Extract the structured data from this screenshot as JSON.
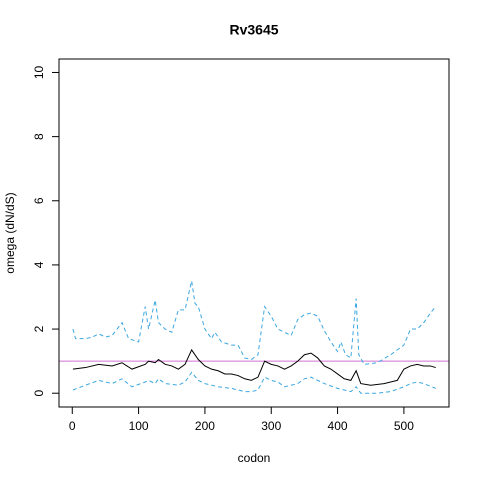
{
  "chart_data": {
    "type": "line",
    "title": "Rv3645",
    "x_label": "codon",
    "y_label": "omega (dN/dS)",
    "xlim": [
      -20,
      568
    ],
    "ylim": [
      -0.43,
      10.42
    ],
    "xticks": [
      0,
      100,
      200,
      300,
      400,
      500
    ],
    "yticks": [
      0,
      2,
      4,
      6,
      8,
      10
    ],
    "hline": {
      "value": 1,
      "color": "#d070d0"
    },
    "series": [
      {
        "color": "#000000",
        "dash": false,
        "x": [
          1,
          20,
          40,
          60,
          75,
          90,
          110,
          115,
          125,
          130,
          140,
          150,
          160,
          170,
          180,
          190,
          200,
          210,
          220,
          230,
          240,
          250,
          260,
          270,
          280,
          290,
          300,
          310,
          320,
          330,
          340,
          350,
          360,
          370,
          380,
          390,
          400,
          410,
          420,
          428,
          435,
          450,
          470,
          490,
          500,
          510,
          520,
          530,
          540,
          548
        ],
        "values": [
          0.75,
          0.8,
          0.9,
          0.85,
          0.95,
          0.75,
          0.9,
          1.0,
          0.95,
          1.05,
          0.9,
          0.85,
          0.75,
          0.9,
          1.35,
          1.05,
          0.85,
          0.75,
          0.7,
          0.6,
          0.6,
          0.55,
          0.45,
          0.4,
          0.5,
          1.0,
          0.9,
          0.85,
          0.75,
          0.85,
          1.0,
          1.2,
          1.25,
          1.1,
          0.85,
          0.75,
          0.6,
          0.45,
          0.4,
          0.7,
          0.3,
          0.25,
          0.3,
          0.4,
          0.75,
          0.85,
          0.9,
          0.85,
          0.85,
          0.8
        ]
      },
      {
        "color": "#3ba7e0",
        "dash": true,
        "x": [
          1,
          5,
          20,
          30,
          40,
          50,
          60,
          75,
          85,
          100,
          110,
          115,
          125,
          130,
          140,
          150,
          160,
          170,
          180,
          185,
          190,
          200,
          210,
          215,
          225,
          240,
          250,
          260,
          270,
          280,
          290,
          300,
          310,
          320,
          330,
          340,
          350,
          360,
          370,
          380,
          390,
          400,
          405,
          412,
          420,
          428,
          432,
          440,
          460,
          480,
          500,
          510,
          520,
          530,
          540,
          548
        ],
        "values": [
          2.0,
          1.7,
          1.7,
          1.75,
          1.85,
          1.75,
          1.8,
          2.2,
          1.7,
          1.6,
          2.7,
          2.0,
          2.9,
          2.2,
          2.0,
          1.9,
          2.6,
          2.6,
          3.5,
          2.8,
          2.7,
          2.0,
          1.7,
          1.9,
          1.6,
          1.5,
          1.5,
          1.1,
          1.05,
          1.2,
          2.7,
          2.4,
          2.0,
          1.9,
          1.8,
          2.3,
          2.45,
          2.5,
          2.4,
          1.95,
          1.6,
          1.3,
          1.6,
          1.2,
          1.1,
          2.95,
          1.2,
          0.9,
          0.95,
          1.2,
          1.5,
          2.0,
          2.0,
          2.2,
          2.5,
          2.7
        ]
      },
      {
        "color": "#3ba7e0",
        "dash": true,
        "x": [
          1,
          20,
          40,
          60,
          75,
          90,
          110,
          115,
          125,
          130,
          140,
          160,
          170,
          180,
          190,
          200,
          220,
          240,
          260,
          270,
          280,
          290,
          300,
          310,
          320,
          340,
          350,
          360,
          370,
          380,
          400,
          420,
          428,
          435,
          460,
          480,
          500,
          510,
          520,
          530,
          548
        ],
        "values": [
          0.1,
          0.25,
          0.4,
          0.3,
          0.45,
          0.2,
          0.35,
          0.4,
          0.3,
          0.45,
          0.3,
          0.25,
          0.35,
          0.65,
          0.4,
          0.3,
          0.2,
          0.15,
          0.05,
          0.05,
          0.1,
          0.5,
          0.4,
          0.35,
          0.2,
          0.3,
          0.45,
          0.5,
          0.4,
          0.3,
          0.15,
          0.05,
          0.2,
          0.0,
          0.0,
          0.05,
          0.2,
          0.3,
          0.35,
          0.3,
          0.15
        ]
      }
    ]
  }
}
